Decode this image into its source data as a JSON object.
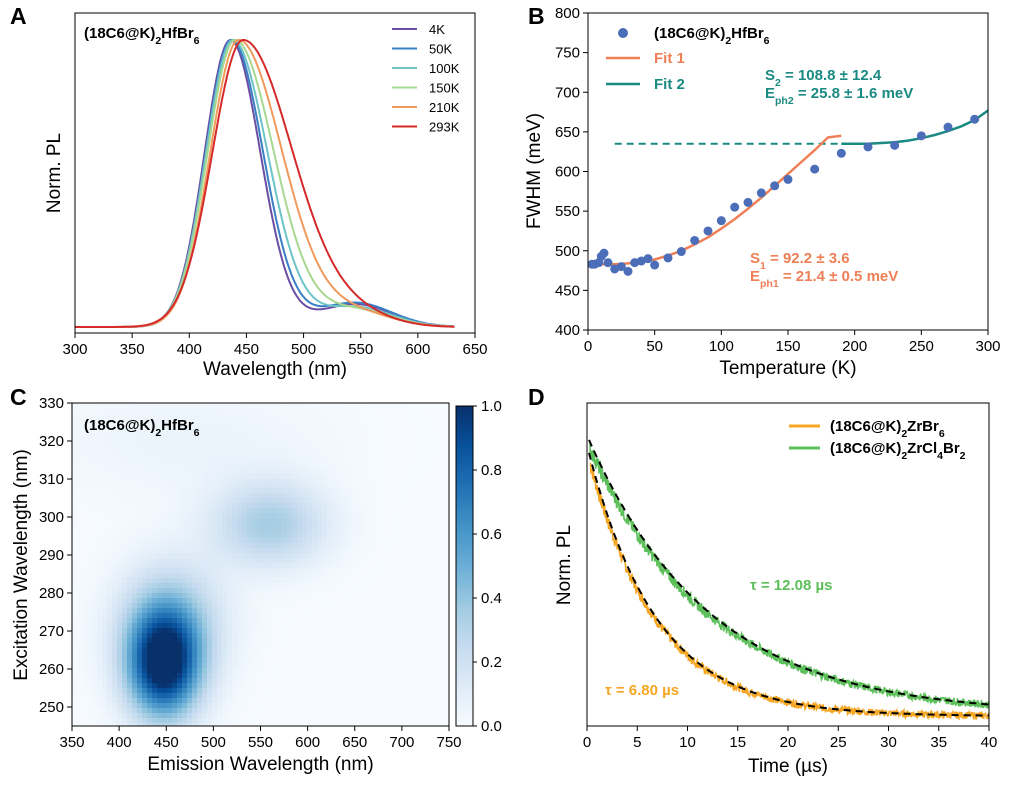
{
  "chart_data": [
    {
      "panel": "A",
      "type": "line",
      "annotation": {
        "main": "(18C6@K)",
        "sub": "2",
        "rest": "HfBr",
        "sub2": "6"
      },
      "xlabel": "Wavelength (nm)",
      "ylabel": "Norm. PL",
      "xlim": [
        300,
        650
      ],
      "xticks": [
        300,
        350,
        400,
        450,
        500,
        550,
        600,
        650
      ],
      "series": [
        {
          "name": "4K",
          "color": "#6a4fa3",
          "peak": 436,
          "wl": 32,
          "wr": 37,
          "tail": 0.08
        },
        {
          "name": "50K",
          "color": "#3a7fc4",
          "peak": 437,
          "wl": 32,
          "wr": 39,
          "tail": 0.085
        },
        {
          "name": "100K",
          "color": "#6cc4c7",
          "peak": 438,
          "wl": 33,
          "wr": 43,
          "tail": 0.07
        },
        {
          "name": "150K",
          "color": "#a8d890",
          "peak": 440,
          "wl": 34,
          "wr": 48,
          "tail": 0.06
        },
        {
          "name": "210K",
          "color": "#f09a5c",
          "peak": 443,
          "wl": 35,
          "wr": 54,
          "tail": 0.05
        },
        {
          "name": "293K",
          "color": "#d42a2a",
          "peak": 447,
          "wl": 38,
          "wr": 61,
          "tail": 0.04
        }
      ]
    },
    {
      "panel": "B",
      "type": "scatter",
      "annotation": {
        "main": "(18C6@K)",
        "sub": "2",
        "rest": "HfBr",
        "sub2": "6"
      },
      "xlabel": "Temperature (K)",
      "ylabel": "FWHM (meV)",
      "xlim": [
        0,
        300
      ],
      "ylim": [
        400,
        800
      ],
      "xticks": [
        0,
        50,
        100,
        150,
        200,
        250,
        300
      ],
      "yticks": [
        400,
        450,
        500,
        550,
        600,
        650,
        700,
        750,
        800
      ],
      "points": {
        "x": [
          3,
          5,
          8,
          10,
          12,
          15,
          20,
          25,
          30,
          35,
          40,
          45,
          50,
          60,
          70,
          80,
          90,
          100,
          110,
          120,
          130,
          140,
          150,
          170,
          190,
          210,
          230,
          250,
          270,
          290
        ],
        "y": [
          483,
          483,
          485,
          493,
          497,
          485,
          477,
          480,
          474,
          485,
          487,
          490,
          482,
          491,
          499,
          513,
          525,
          538,
          555,
          561,
          573,
          582,
          590,
          603,
          623,
          631,
          633,
          645,
          656,
          666
        ]
      },
      "fit1": {
        "name": "Fit 1",
        "color": "#ef7f56",
        "x": [
          0,
          10,
          20,
          30,
          40,
          50,
          60,
          70,
          80,
          90,
          100,
          110,
          120,
          130,
          140,
          150,
          160,
          170,
          180,
          190
        ],
        "y": [
          483,
          483,
          483,
          484,
          486,
          489,
          494,
          500,
          508,
          517,
          528,
          540,
          553,
          567,
          582,
          597,
          612,
          627,
          643,
          645
        ]
      },
      "fit2": {
        "name": "Fit 2",
        "color": "#1a8a82",
        "x": [
          190,
          200,
          210,
          220,
          230,
          240,
          250,
          260,
          270,
          280,
          290,
          300
        ],
        "y": [
          635,
          635,
          635,
          636,
          637,
          639,
          642,
          646,
          651,
          657,
          665,
          677
        ]
      },
      "baseline": {
        "x": [
          20,
          190
        ],
        "y": 635
      },
      "ann1": {
        "line1": "S",
        "line1_sub": "1",
        "line1_val": " = 92.2 ± 3.6",
        "line2": "E",
        "line2_sub": "ph1",
        "line2_val": " = 21.4 ± 0.5 meV"
      },
      "ann2": {
        "line1": "S",
        "line1_sub": "2",
        "line1_val": " = 108.8 ± 12.4",
        "line2": "E",
        "line2_sub": "ph2",
        "line2_val": " = 25.8 ± 1.6 meV"
      }
    },
    {
      "panel": "C",
      "type": "heatmap",
      "annotation": {
        "main": "(18C6@K)",
        "sub": "2",
        "rest": "HfBr",
        "sub2": "6"
      },
      "xlabel": "Emission Wavelength (nm)",
      "ylabel": "Excitation  Wavelength (nm)",
      "xlim": [
        350,
        750
      ],
      "ylim": [
        245,
        330
      ],
      "xticks": [
        350,
        400,
        450,
        500,
        550,
        600,
        650,
        700,
        750
      ],
      "yticks": [
        250,
        260,
        270,
        280,
        290,
        300,
        310,
        320,
        330
      ],
      "colorbar": {
        "min": 0.0,
        "max": 1.0,
        "ticks": [
          "0.0",
          "0.2",
          "0.4",
          "0.6",
          "0.8",
          "1.0"
        ]
      },
      "blobs": [
        {
          "ex": 447,
          "ey": 261,
          "sx": 38,
          "sy": 14,
          "amp": 1.0
        },
        {
          "ex": 455,
          "ey": 272,
          "sx": 55,
          "sy": 16,
          "amp": 0.35
        },
        {
          "ex": 560,
          "ey": 298,
          "sx": 60,
          "sy": 11,
          "amp": 0.35
        },
        {
          "ex": 470,
          "ey": 320,
          "sx": 150,
          "sy": 15,
          "amp": 0.06
        }
      ]
    },
    {
      "panel": "D",
      "type": "line",
      "xlabel": "Time (µs)",
      "ylabel": "Norm. PL",
      "xlim": [
        0,
        40
      ],
      "xticks": [
        0,
        5,
        10,
        15,
        20,
        25,
        30,
        35,
        40
      ],
      "series": [
        {
          "name_main": "(18C6@K)",
          "name_sub": "2",
          "name_rest": "ZrBr",
          "name_sub2": "6",
          "color": "#f5a623",
          "tau": 6.8,
          "start": 0.85,
          "floor": 0.03,
          "tau_label": "τ = 6.80 µs"
        },
        {
          "name_main": "(18C6@K)",
          "name_sub": "2",
          "name_rest": "ZrCl",
          "name_sub2": "4",
          "name_rest2": "Br",
          "name_sub3": "2",
          "color": "#5cbf5a",
          "tau": 12.08,
          "start": 0.88,
          "floor": 0.035,
          "tau_label": "τ = 12.08 µs"
        }
      ]
    }
  ],
  "panel_labels": [
    "A",
    "B",
    "C",
    "D"
  ]
}
